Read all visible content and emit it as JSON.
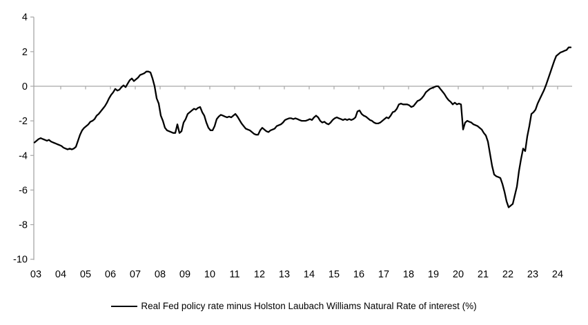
{
  "chart_data": {
    "type": "line",
    "title": "",
    "xlabel": "",
    "ylabel": "",
    "ylim": [
      -10,
      4
    ],
    "y_ticks": [
      4,
      2,
      0,
      -2,
      -4,
      -6,
      -8,
      -10
    ],
    "y_tick_labels": [
      "4",
      "2",
      "0",
      "-2",
      "-4",
      "-6",
      "-8",
      "-10"
    ],
    "x_tick_labels": [
      "03",
      "04",
      "05",
      "06",
      "07",
      "08",
      "09",
      "10",
      "11",
      "12",
      "13",
      "14",
      "15",
      "16",
      "17",
      "18",
      "19",
      "20",
      "21",
      "22",
      "23",
      "24"
    ],
    "x_range_note": "monthly data, Jan 2003 through Aug 2024",
    "grid": "zero-baseline-only",
    "legend_position": "bottom-center",
    "line_color": "#000000",
    "axis_color": "#a6a6a6",
    "series": [
      {
        "name": "Real Fed policy rate minus Holston Laubach Williams Natural Rate of interest (%)",
        "frequency": "monthly",
        "start": "2003-01",
        "end": "2024-08",
        "values": [
          -3.25,
          -3.15,
          -3.05,
          -3.0,
          -3.05,
          -3.1,
          -3.15,
          -3.1,
          -3.2,
          -3.25,
          -3.3,
          -3.35,
          -3.4,
          -3.45,
          -3.55,
          -3.6,
          -3.65,
          -3.6,
          -3.65,
          -3.6,
          -3.5,
          -3.15,
          -2.8,
          -2.55,
          -2.4,
          -2.3,
          -2.2,
          -2.05,
          -2.0,
          -1.9,
          -1.7,
          -1.6,
          -1.45,
          -1.3,
          -1.15,
          -0.95,
          -0.7,
          -0.5,
          -0.35,
          -0.15,
          -0.25,
          -0.2,
          -0.05,
          0.05,
          -0.05,
          0.15,
          0.35,
          0.45,
          0.3,
          0.4,
          0.5,
          0.65,
          0.7,
          0.75,
          0.85,
          0.85,
          0.8,
          0.45,
          0.0,
          -0.7,
          -1.0,
          -1.7,
          -2.0,
          -2.4,
          -2.55,
          -2.6,
          -2.65,
          -2.7,
          -2.7,
          -2.2,
          -2.7,
          -2.6,
          -2.1,
          -1.9,
          -1.6,
          -1.5,
          -1.4,
          -1.3,
          -1.35,
          -1.25,
          -1.2,
          -1.5,
          -1.7,
          -2.1,
          -2.4,
          -2.55,
          -2.55,
          -2.3,
          -1.9,
          -1.75,
          -1.65,
          -1.7,
          -1.75,
          -1.8,
          -1.75,
          -1.8,
          -1.7,
          -1.6,
          -1.75,
          -1.95,
          -2.15,
          -2.3,
          -2.45,
          -2.5,
          -2.55,
          -2.65,
          -2.75,
          -2.8,
          -2.8,
          -2.55,
          -2.4,
          -2.5,
          -2.6,
          -2.65,
          -2.55,
          -2.5,
          -2.45,
          -2.3,
          -2.25,
          -2.2,
          -2.1,
          -1.95,
          -1.9,
          -1.85,
          -1.85,
          -1.9,
          -1.85,
          -1.9,
          -1.95,
          -2.0,
          -2.0,
          -2.0,
          -1.95,
          -1.9,
          -1.95,
          -1.8,
          -1.7,
          -1.8,
          -2.0,
          -2.1,
          -2.05,
          -2.15,
          -2.2,
          -2.1,
          -1.95,
          -1.85,
          -1.8,
          -1.85,
          -1.9,
          -1.95,
          -1.9,
          -1.95,
          -1.9,
          -1.95,
          -1.9,
          -1.8,
          -1.45,
          -1.4,
          -1.6,
          -1.7,
          -1.75,
          -1.85,
          -1.95,
          -2.0,
          -2.1,
          -2.15,
          -2.15,
          -2.1,
          -2.0,
          -1.9,
          -1.8,
          -1.85,
          -1.7,
          -1.5,
          -1.45,
          -1.3,
          -1.05,
          -1.0,
          -1.05,
          -1.05,
          -1.05,
          -1.1,
          -1.2,
          -1.15,
          -1.0,
          -0.85,
          -0.8,
          -0.7,
          -0.55,
          -0.35,
          -0.25,
          -0.15,
          -0.1,
          -0.05,
          0.0,
          0.0,
          -0.15,
          -0.3,
          -0.45,
          -0.65,
          -0.8,
          -0.9,
          -1.05,
          -0.95,
          -1.05,
          -1.0,
          -1.05,
          -2.5,
          -2.1,
          -2.0,
          -2.05,
          -2.1,
          -2.2,
          -2.25,
          -2.3,
          -2.4,
          -2.5,
          -2.7,
          -2.85,
          -3.2,
          -3.9,
          -4.6,
          -5.1,
          -5.2,
          -5.25,
          -5.3,
          -5.65,
          -6.1,
          -6.65,
          -7.0,
          -6.9,
          -6.8,
          -6.3,
          -5.8,
          -4.9,
          -4.2,
          -3.6,
          -3.75,
          -2.9,
          -2.3,
          -1.6,
          -1.5,
          -1.35,
          -1.0,
          -0.75,
          -0.5,
          -0.25,
          0.05,
          0.4,
          0.75,
          1.1,
          1.45,
          1.75,
          1.85,
          1.95,
          2.0,
          2.05,
          2.1,
          2.25,
          2.25
        ]
      }
    ]
  },
  "legend": {
    "label": "Real Fed policy rate minus Holston Laubach Williams Natural Rate of interest (%)"
  }
}
